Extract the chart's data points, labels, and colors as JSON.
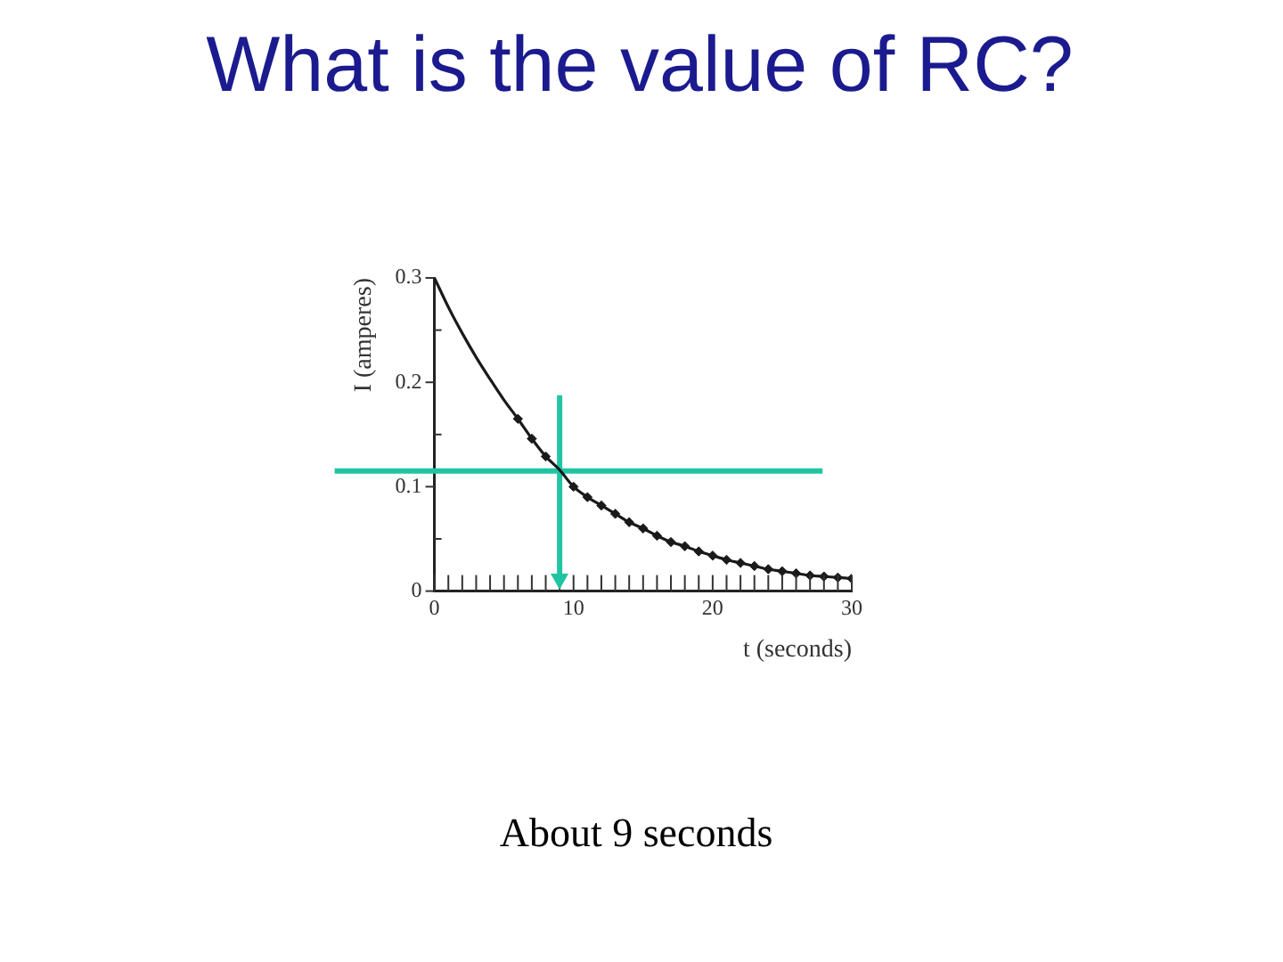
{
  "chart_data": {
    "type": "line",
    "title": "What is the value of RC?",
    "xlabel": "t (seconds)",
    "ylabel": "I (amperes)",
    "x": [
      0,
      1,
      2,
      3,
      4,
      5,
      6,
      7,
      8,
      9,
      10,
      11,
      12,
      13,
      14,
      15,
      16,
      17,
      18,
      19,
      20,
      21,
      22,
      23,
      24,
      25,
      26,
      27,
      28,
      29,
      30
    ],
    "series": [
      {
        "type": "line",
        "color": "#1a1a1a",
        "marker": "none",
        "values": [
          0.3,
          0.272,
          0.247,
          0.224,
          0.203,
          0.183,
          0.165,
          0.146,
          0.129,
          0.116,
          0.1,
          0.09,
          0.082,
          0.074,
          0.066,
          0.06,
          0.053,
          0.047,
          0.043,
          0.038,
          0.034,
          0.03,
          0.027,
          0.024,
          0.021,
          0.019,
          0.017,
          0.015,
          0.014,
          0.013,
          0.012
        ]
      },
      {
        "type": "scatter",
        "color": "#1a1a1a",
        "marker": "diamond",
        "x": [
          6,
          7,
          8,
          9,
          10,
          11,
          12,
          13,
          14,
          15,
          16,
          17,
          18,
          19,
          20,
          21,
          22,
          23,
          24,
          25,
          26,
          27,
          28,
          29,
          30
        ],
        "values": [
          0.165,
          0.146,
          0.129,
          null,
          0.1,
          0.09,
          0.082,
          0.074,
          0.066,
          0.06,
          0.053,
          0.047,
          0.043,
          0.038,
          0.034,
          0.03,
          0.027,
          0.024,
          0.021,
          0.019,
          0.017,
          0.015,
          0.014,
          0.013,
          0.012
        ]
      }
    ],
    "xlim": [
      0,
      30
    ],
    "xticks": [
      0,
      {
        "value": 1,
        "label": null
      },
      {
        "value": 2,
        "label": null
      },
      {
        "value": 3,
        "label": null
      },
      {
        "value": 4,
        "label": null
      },
      {
        "value": 5,
        "label": null
      },
      {
        "value": 6,
        "label": null
      },
      {
        "value": 7,
        "label": null
      },
      {
        "value": 8,
        "label": null
      },
      {
        "value": 9,
        "label": null
      },
      10,
      {
        "value": 11,
        "label": null
      },
      {
        "value": 12,
        "label": null
      },
      {
        "value": 13,
        "label": null
      },
      {
        "value": 14,
        "label": null
      },
      {
        "value": 15,
        "label": null
      },
      {
        "value": 16,
        "label": null
      },
      {
        "value": 17,
        "label": null
      },
      {
        "value": 18,
        "label": null
      },
      {
        "value": 19,
        "label": null
      },
      20,
      {
        "value": 21,
        "label": null
      },
      {
        "value": 22,
        "label": null
      },
      {
        "value": 23,
        "label": null
      },
      {
        "value": 24,
        "label": null
      },
      {
        "value": 25,
        "label": null
      },
      {
        "value": 26,
        "label": null
      },
      {
        "value": 27,
        "label": null
      },
      {
        "value": 28,
        "label": null
      },
      {
        "value": 29,
        "label": null
      },
      30
    ],
    "ylim": [
      0,
      0.3
    ],
    "yticks": [
      0,
      {
        "value": 0.05,
        "label": null
      },
      0.1,
      {
        "value": 0.15,
        "label": null
      },
      0.2,
      {
        "value": 0.25,
        "label": null
      },
      0.3
    ],
    "ref_lines": [
      {
        "axis": "y",
        "value": 0.115,
        "color": "#21c4a2"
      },
      {
        "axis": "x",
        "value": 9,
        "color": "#21c4a2"
      }
    ],
    "annotations": [
      "About 9 seconds"
    ]
  }
}
